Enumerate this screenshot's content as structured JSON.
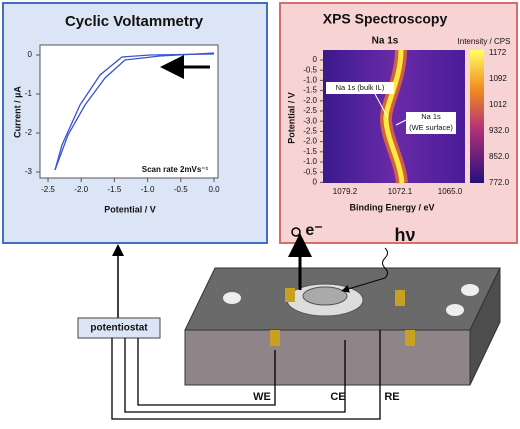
{
  "cv_panel": {
    "title": "Cyclic Voltammetry",
    "y_label": "Current / µA",
    "x_label": "Potential / V",
    "x_ticks": [
      "-2.5",
      "-2.0",
      "-1.5",
      "-1.0",
      "-0.5",
      "0.0"
    ],
    "y_ticks": [
      "0",
      "-1",
      "-2",
      "-3"
    ],
    "annotation": "Scan rate 2mVs⁻¹"
  },
  "xps_panel": {
    "title": "XPS Spectroscopy",
    "subtitle": "Na 1s",
    "colorbar_label": "Intensity / CPS",
    "colorbar_ticks": [
      "1172",
      "1092",
      "1012",
      "932.0",
      "852.0",
      "772.0"
    ],
    "x_label": "Binding Energy / eV",
    "x_ticks": [
      "1079.2",
      "1072.1",
      "1065.0"
    ],
    "y_ticks": [
      "0",
      "-0.5",
      "-1.0",
      "-1.5",
      "-2.0",
      "-2.5",
      "-3.0",
      "-2.5",
      "-2.0",
      "-1.5",
      "-1.0",
      "-0.5",
      "0"
    ],
    "annotations": [
      "Na 1s (bulk IL)",
      "Na 1s",
      "(WE surface)"
    ]
  },
  "diagram": {
    "potentiostat": "potentiostat",
    "electrodes": [
      "WE",
      "CE",
      "RE"
    ],
    "emission": "e⁻",
    "photon": "hν"
  }
}
